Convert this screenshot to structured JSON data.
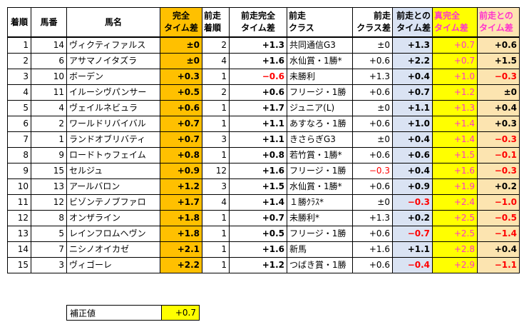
{
  "headers": {
    "h0": [
      "着順"
    ],
    "h1": [
      "馬番"
    ],
    "h2": [
      "馬名"
    ],
    "h3": [
      "完全",
      "タイム差"
    ],
    "h4": [
      "前走",
      "着順"
    ],
    "h5": [
      "前走完全",
      "タイム差"
    ],
    "h6": [
      "前走",
      "クラス"
    ],
    "h7": [
      "前走",
      "クラス差"
    ],
    "h8": [
      "前走との",
      "タイム差"
    ],
    "h9": [
      "真完全",
      "タイム差"
    ],
    "h10": [
      "前走との",
      "タイム差"
    ]
  },
  "rows": [
    [
      "1",
      "14",
      "ヴィクティファルス",
      "±0",
      "2",
      "+1.3",
      "共同通信G3",
      "±0",
      "+1.3",
      "+0.7",
      "+0.6"
    ],
    [
      "2",
      "6",
      "アサマノイタズラ",
      "±0",
      "4",
      "+1.6",
      "水仙賞・1勝*",
      "+0.6",
      "+2.2",
      "+0.7",
      "+1.5"
    ],
    [
      "3",
      "10",
      "ボーデン",
      "+0.3",
      "1",
      "−0.6",
      "未勝利",
      "+1.3",
      "+0.4",
      "+1.0",
      "−0.3"
    ],
    [
      "4",
      "11",
      "イルーシヴパンサー",
      "+0.5",
      "2",
      "+0.6",
      "フリージ・1勝",
      "+0.6",
      "+0.7",
      "+1.2",
      "±0"
    ],
    [
      "5",
      "4",
      "ヴェイルネビュラ",
      "+0.6",
      "1",
      "+1.7",
      "ジュニア(L)",
      "±0",
      "+1.1",
      "+1.3",
      "+0.4"
    ],
    [
      "6",
      "2",
      "ワールドリバイバル",
      "+0.7",
      "1",
      "+1.1",
      "あすなろ・1勝",
      "+0.6",
      "+1.0",
      "+1.4",
      "+0.3"
    ],
    [
      "7",
      "1",
      "ランドオブリバティ",
      "+0.7",
      "3",
      "+1.1",
      "きさらぎG3",
      "±0",
      "+0.4",
      "+1.4",
      "−0.3"
    ],
    [
      "8",
      "9",
      "ロードトゥフェイム",
      "+0.8",
      "1",
      "+0.8",
      "若竹賞・1勝*",
      "+0.6",
      "+0.6",
      "+1.5",
      "−0.1"
    ],
    [
      "9",
      "15",
      "セルジュ",
      "+0.9",
      "12",
      "+1.6",
      "フリージ・1勝",
      "−0.3",
      "+0.4",
      "+1.6",
      "−0.3"
    ],
    [
      "10",
      "13",
      "アールバロン",
      "+1.2",
      "3",
      "+1.5",
      "水仙賞・1勝*",
      "+0.6",
      "+0.9",
      "+1.9",
      "+0.2"
    ],
    [
      "11",
      "12",
      "ビゾンテノブファロ",
      "+1.7",
      "4",
      "+1.4",
      "１勝ｸﾗｽ*",
      "±0",
      "−0.3",
      "+2.4",
      "−1.0"
    ],
    [
      "12",
      "8",
      "オンザライン",
      "+1.8",
      "1",
      "+0.7",
      "未勝利*",
      "+1.3",
      "+0.2",
      "+2.5",
      "−0.5"
    ],
    [
      "13",
      "5",
      "レインフロムヘヴン",
      "+1.8",
      "1",
      "+0.5",
      "フリージ・1勝",
      "+0.6",
      "−0.7",
      "+2.5",
      "−1.4"
    ],
    [
      "14",
      "7",
      "ニシノオイカゼ",
      "+2.1",
      "1",
      "+1.6",
      "新馬",
      "+1.6",
      "+1.1",
      "+2.8",
      "+0.4"
    ],
    [
      "15",
      "3",
      "ヴィゴーレ",
      "+2.2",
      "1",
      "+1.2",
      "つばき賞・1勝",
      "+0.6",
      "−0.4",
      "+2.9",
      "−1.1"
    ]
  ],
  "correction": {
    "label": "補正値",
    "value": "+0.7"
  }
}
